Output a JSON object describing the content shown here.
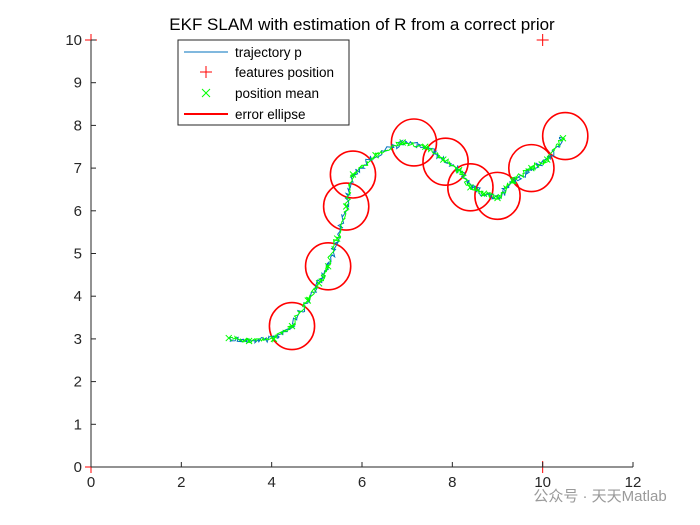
{
  "chart_data": {
    "type": "line",
    "title": "EKF SLAM with estimation of R from a correct prior",
    "xlabel": "",
    "ylabel": "",
    "xlim": [
      0,
      12
    ],
    "ylim": [
      0,
      10
    ],
    "x_ticks": [
      "0",
      "2",
      "4",
      "6",
      "8",
      "10",
      "12"
    ],
    "y_ticks": [
      "0",
      "1",
      "2",
      "3",
      "4",
      "5",
      "6",
      "7",
      "8",
      "9",
      "10"
    ],
    "grid": false,
    "legend_position": "top-left",
    "legend": [
      {
        "label": "trajectory p",
        "style": "line",
        "color": "#0072BD"
      },
      {
        "label": "features position",
        "style": "plus-marker",
        "color": "#FF0000"
      },
      {
        "label": "position mean",
        "style": "x-marker",
        "color": "#00FF00"
      },
      {
        "label": "error ellipse",
        "style": "line",
        "color": "#FF0000"
      }
    ],
    "colors": {
      "trajectory": "#0072BD",
      "features": "#FF0000",
      "mean": "#00FF00",
      "ellipse": "#FF0000",
      "axis": "#262626"
    },
    "trajectory_waypoints": [
      [
        3.05,
        3.02
      ],
      [
        3.5,
        2.95
      ],
      [
        4.05,
        3.0
      ],
      [
        4.45,
        3.3
      ],
      [
        4.8,
        3.9
      ],
      [
        5.05,
        4.3
      ],
      [
        5.25,
        4.7
      ],
      [
        5.45,
        5.35
      ],
      [
        5.65,
        6.1
      ],
      [
        5.8,
        6.85
      ],
      [
        6.3,
        7.3
      ],
      [
        6.9,
        7.6
      ],
      [
        7.4,
        7.5
      ],
      [
        7.8,
        7.2
      ],
      [
        8.15,
        6.95
      ],
      [
        8.4,
        6.55
      ],
      [
        8.7,
        6.4
      ],
      [
        9.0,
        6.3
      ],
      [
        9.35,
        6.7
      ],
      [
        9.75,
        7.0
      ],
      [
        10.1,
        7.2
      ],
      [
        10.45,
        7.7
      ]
    ],
    "features": [
      {
        "x": 0,
        "y": 0
      },
      {
        "x": 0,
        "y": 10
      },
      {
        "x": 10,
        "y": 0
      },
      {
        "x": 10,
        "y": 10
      }
    ],
    "ellipses": [
      {
        "cx": 4.45,
        "cy": 3.3,
        "rx": 0.5,
        "ry": 0.55
      },
      {
        "cx": 5.25,
        "cy": 4.7,
        "rx": 0.5,
        "ry": 0.55
      },
      {
        "cx": 5.65,
        "cy": 6.1,
        "rx": 0.5,
        "ry": 0.55
      },
      {
        "cx": 5.8,
        "cy": 6.85,
        "rx": 0.5,
        "ry": 0.55
      },
      {
        "cx": 7.15,
        "cy": 7.6,
        "rx": 0.5,
        "ry": 0.55
      },
      {
        "cx": 7.85,
        "cy": 7.15,
        "rx": 0.5,
        "ry": 0.55
      },
      {
        "cx": 8.4,
        "cy": 6.55,
        "rx": 0.5,
        "ry": 0.55
      },
      {
        "cx": 9.0,
        "cy": 6.35,
        "rx": 0.5,
        "ry": 0.55
      },
      {
        "cx": 9.75,
        "cy": 7.0,
        "rx": 0.5,
        "ry": 0.55
      },
      {
        "cx": 10.5,
        "cy": 7.75,
        "rx": 0.5,
        "ry": 0.55
      }
    ]
  },
  "watermark": "公众号 · 天天Matlab"
}
